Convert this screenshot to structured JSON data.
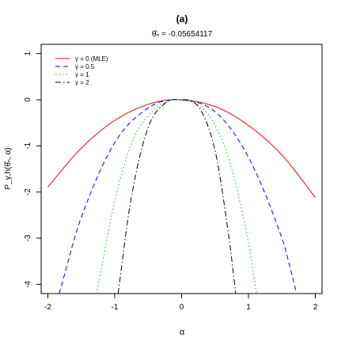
{
  "chart_data": {
    "type": "line",
    "title": "(a)",
    "subtitle": "θ̂ₙ = -0.05654117",
    "xlabel": "α",
    "ylabel": "P_γ,h(θ̂ₙ, α)",
    "xlim": [
      -2.1,
      2.1
    ],
    "ylim": [
      -4.2,
      1.2
    ],
    "xticks": [
      -2,
      -1,
      0,
      1,
      2
    ],
    "yticks": [
      1,
      0,
      -1,
      -2,
      -3,
      -4
    ],
    "grid": false,
    "legend_position": "top-left",
    "series": [
      {
        "name": "γ = 0 (MLE)",
        "color": "#ff0000",
        "dash": "solid",
        "x": [
          -2.0,
          -1.5,
          -1.0,
          -0.5,
          -0.0565,
          0.5,
          1.0,
          1.5,
          2.0
        ],
        "y": [
          -1.89,
          -1.05,
          -0.45,
          -0.1,
          0.0,
          -0.15,
          -0.56,
          -1.2,
          -2.12
        ]
      },
      {
        "name": "γ = 0.5",
        "color": "#0000ff",
        "dash": "dashed",
        "x": [
          -1.83,
          -1.5,
          -1.0,
          -0.5,
          -0.0565,
          0.5,
          1.0,
          1.5,
          1.72
        ],
        "y": [
          -4.2,
          -2.55,
          -0.93,
          -0.18,
          0.0,
          -0.26,
          -1.25,
          -3.0,
          -4.2
        ]
      },
      {
        "name": "γ = 1",
        "color": "#00cc00",
        "dash": "dotted",
        "x": [
          -1.27,
          -1.0,
          -0.75,
          -0.5,
          -0.25,
          -0.0565,
          0.25,
          0.5,
          0.75,
          1.0,
          1.12
        ],
        "y": [
          -4.2,
          -2.2,
          -0.95,
          -0.35,
          -0.06,
          0.0,
          -0.12,
          -0.55,
          -1.5,
          -3.1,
          -4.2
        ]
      },
      {
        "name": "γ = 2",
        "color": "#000000",
        "dash": "dashdot",
        "x": [
          -0.95,
          -0.75,
          -0.5,
          -0.25,
          -0.0565,
          0.25,
          0.5,
          0.7,
          0.81
        ],
        "y": [
          -4.2,
          -2.1,
          -0.6,
          -0.08,
          0.0,
          -0.15,
          -1.1,
          -2.9,
          -4.2
        ]
      }
    ]
  }
}
